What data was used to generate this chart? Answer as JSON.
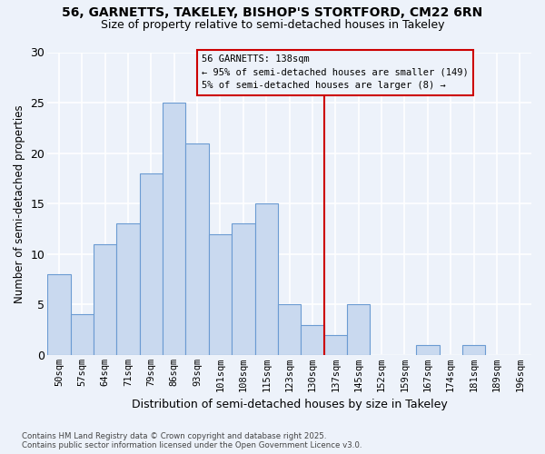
{
  "title_line1": "56, GARNETTS, TAKELEY, BISHOP'S STORTFORD, CM22 6RN",
  "title_line2": "Size of property relative to semi-detached houses in Takeley",
  "xlabel": "Distribution of semi-detached houses by size in Takeley",
  "ylabel": "Number of semi-detached properties",
  "categories": [
    "50sqm",
    "57sqm",
    "64sqm",
    "71sqm",
    "79sqm",
    "86sqm",
    "93sqm",
    "101sqm",
    "108sqm",
    "115sqm",
    "123sqm",
    "130sqm",
    "137sqm",
    "145sqm",
    "152sqm",
    "159sqm",
    "167sqm",
    "174sqm",
    "181sqm",
    "189sqm",
    "196sqm"
  ],
  "values": [
    8,
    4,
    11,
    13,
    18,
    25,
    21,
    12,
    13,
    15,
    5,
    3,
    2,
    5,
    0,
    0,
    1,
    0,
    1,
    0,
    0
  ],
  "bar_color": "#c9d9ef",
  "bar_edge_color": "#6b9bd2",
  "reference_line_index": 12,
  "reference_label": "56 GARNETTS: 138sqm",
  "annotation_line2": "← 95% of semi-detached houses are smaller (149)",
  "annotation_line3": "5% of semi-detached houses are larger (8) →",
  "annotation_box_edgecolor": "#cc0000",
  "ylim": [
    0,
    30
  ],
  "yticks": [
    0,
    5,
    10,
    15,
    20,
    25,
    30
  ],
  "footer_line1": "Contains HM Land Registry data © Crown copyright and database right 2025.",
  "footer_line2": "Contains public sector information licensed under the Open Government Licence v3.0.",
  "background_color": "#edf2fa",
  "grid_color": "#ffffff"
}
